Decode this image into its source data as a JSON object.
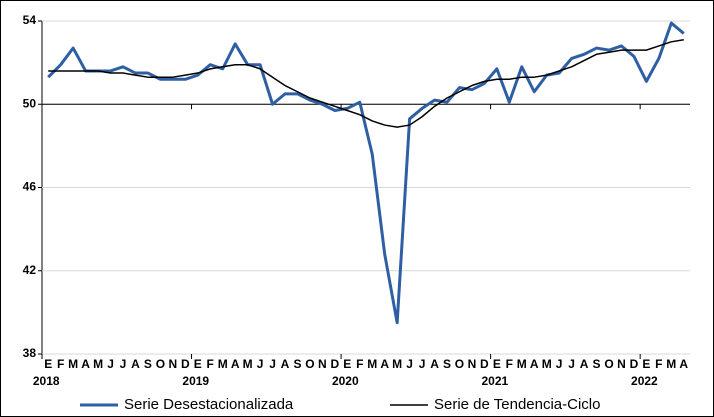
{
  "chart_data": {
    "type": "line",
    "categories": [
      "E",
      "F",
      "M",
      "A",
      "M",
      "J",
      "J",
      "A",
      "S",
      "O",
      "N",
      "D",
      "E",
      "F",
      "M",
      "A",
      "M",
      "J",
      "J",
      "A",
      "S",
      "O",
      "N",
      "D",
      "E",
      "F",
      "M",
      "A",
      "M",
      "J",
      "J",
      "A",
      "S",
      "O",
      "N",
      "D",
      "E",
      "F",
      "M",
      "A",
      "M",
      "J",
      "J",
      "A",
      "S",
      "O",
      "N",
      "D",
      "E",
      "F",
      "M",
      "A"
    ],
    "year_labels": [
      "2018",
      "2019",
      "2020",
      "2021",
      "2022"
    ],
    "series": [
      {
        "name": "Serie Desestacionalizada",
        "color": "#2e5fa3",
        "width": 3,
        "values": [
          51.3,
          51.9,
          52.7,
          51.6,
          51.6,
          51.6,
          51.8,
          51.5,
          51.5,
          51.2,
          51.2,
          51.2,
          51.4,
          51.9,
          51.7,
          52.9,
          51.9,
          51.9,
          50.0,
          50.5,
          50.5,
          50.2,
          50.0,
          49.7,
          49.8,
          50.1,
          47.6,
          42.8,
          39.5,
          49.3,
          49.8,
          50.2,
          50.1,
          50.8,
          50.7,
          51.0,
          51.7,
          50.1,
          51.8,
          50.6,
          51.4,
          51.5,
          52.2,
          52.4,
          52.7,
          52.6,
          52.8,
          52.3,
          51.1,
          52.2,
          53.9,
          53.4
        ]
      },
      {
        "name": "Serie de Tendencia-Ciclo",
        "color": "#000000",
        "width": 1.5,
        "values": [
          51.6,
          51.6,
          51.6,
          51.6,
          51.6,
          51.5,
          51.5,
          51.4,
          51.3,
          51.3,
          51.3,
          51.4,
          51.5,
          51.7,
          51.8,
          51.9,
          51.9,
          51.7,
          51.3,
          50.9,
          50.6,
          50.3,
          50.1,
          49.9,
          49.7,
          49.5,
          49.2,
          49.0,
          48.9,
          49.0,
          49.4,
          49.9,
          50.3,
          50.6,
          50.9,
          51.1,
          51.2,
          51.2,
          51.3,
          51.3,
          51.4,
          51.6,
          51.8,
          52.1,
          52.4,
          52.5,
          52.6,
          52.6,
          52.6,
          52.8,
          53.0,
          53.1
        ]
      }
    ],
    "ylim": [
      38,
      54
    ],
    "yticks": [
      38,
      42,
      46,
      50,
      54
    ],
    "x_axis_crosses": 50,
    "grid": true,
    "legend": "bottom"
  }
}
